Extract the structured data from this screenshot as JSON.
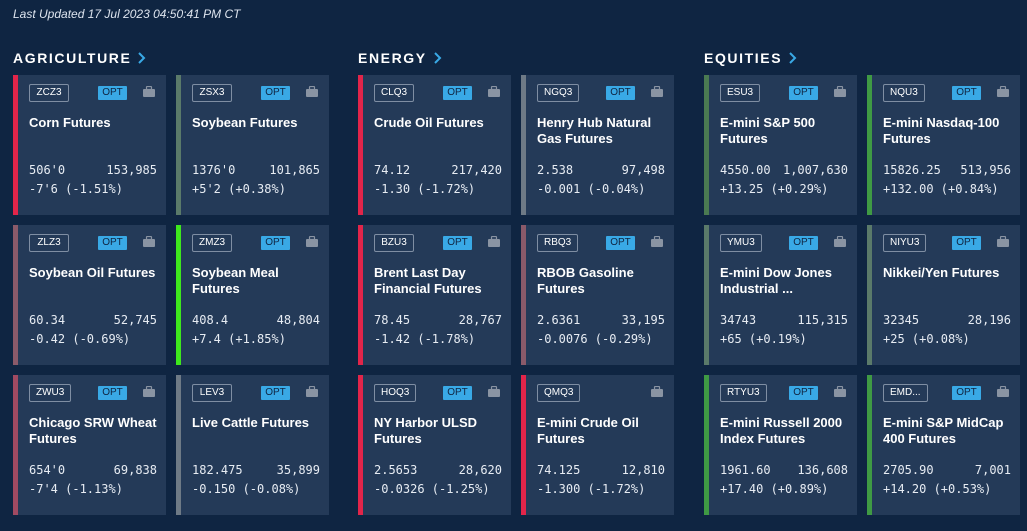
{
  "last_updated": "Last Updated 17 Jul 2023 04:50:41 PM CT",
  "colors": {
    "background": "#0f2542",
    "card": "#243a58",
    "opt_badge": "#39a9e6",
    "neg_strong": "#e2254a",
    "neg_weak": "#8a5a6a",
    "pos_strong": "#3ee81d",
    "pos_weak": "#3f8a44",
    "neutral": "#6e7a86"
  },
  "sections": [
    {
      "title": "AGRICULTURE",
      "cards": [
        {
          "symbol": "ZCZ3",
          "opt": "OPT",
          "name": "Corn Futures",
          "price": "506'0",
          "volume": "153,985",
          "change": "-7'6 (-1.51%)",
          "bar_color": "#e2254a"
        },
        {
          "symbol": "ZSX3",
          "opt": "OPT",
          "name": "Soybean Futures",
          "price": "1376'0",
          "volume": "101,865",
          "change": "+5'2 (+0.38%)",
          "bar_color": "#5a7a6a"
        },
        {
          "symbol": "ZLZ3",
          "opt": "OPT",
          "name": "Soybean Oil Futures",
          "price": "60.34",
          "volume": "52,745",
          "change": "-0.42 (-0.69%)",
          "bar_color": "#8a5a6a"
        },
        {
          "symbol": "ZMZ3",
          "opt": "OPT",
          "name": "Soybean Meal Futures",
          "price": "408.4",
          "volume": "48,804",
          "change": "+7.4 (+1.85%)",
          "bar_color": "#3ee81d"
        },
        {
          "symbol": "ZWU3",
          "opt": "OPT",
          "name": "Chicago SRW Wheat Futures",
          "price": "654'0",
          "volume": "69,838",
          "change": "-7'4 (-1.13%)",
          "bar_color": "#a04a62"
        },
        {
          "symbol": "LEV3",
          "opt": "OPT",
          "name": "Live Cattle Futures",
          "price": "182.475",
          "volume": "35,899",
          "change": "-0.150 (-0.08%)",
          "bar_color": "#6e7a86"
        }
      ]
    },
    {
      "title": "ENERGY",
      "cards": [
        {
          "symbol": "CLQ3",
          "opt": "OPT",
          "name": "Crude Oil Futures",
          "price": "74.12",
          "volume": "217,420",
          "change": "-1.30 (-1.72%)",
          "bar_color": "#e2254a"
        },
        {
          "symbol": "NGQ3",
          "opt": "OPT",
          "name": "Henry Hub Natural Gas Futures",
          "price": "2.538",
          "volume": "97,498",
          "change": "-0.001 (-0.04%)",
          "bar_color": "#6e7a86"
        },
        {
          "symbol": "BZU3",
          "opt": "OPT",
          "name": "Brent Last Day Financial Futures",
          "price": "78.45",
          "volume": "28,767",
          "change": "-1.42 (-1.78%)",
          "bar_color": "#e2254a"
        },
        {
          "symbol": "RBQ3",
          "opt": "OPT",
          "name": "RBOB Gasoline Futures",
          "price": "2.6361",
          "volume": "33,195",
          "change": "-0.0076 (-0.29%)",
          "bar_color": "#8a5a6a"
        },
        {
          "symbol": "HOQ3",
          "opt": "OPT",
          "name": "NY Harbor ULSD Futures",
          "price": "2.5653",
          "volume": "28,620",
          "change": "-0.0326 (-1.25%)",
          "bar_color": "#e2254a"
        },
        {
          "symbol": "QMQ3",
          "opt": "",
          "name": "E-mini Crude Oil Futures",
          "price": "74.125",
          "volume": "12,810",
          "change": "-1.300 (-1.72%)",
          "bar_color": "#e2254a"
        }
      ]
    },
    {
      "title": "EQUITIES",
      "cards": [
        {
          "symbol": "ESU3",
          "opt": "OPT",
          "name": "E-mini S&P 500 Futures",
          "price": "4550.00",
          "volume": "1,007,630",
          "change": "+13.25 (+0.29%)",
          "bar_color": "#4a7a52"
        },
        {
          "symbol": "NQU3",
          "opt": "OPT",
          "name": "E-mini Nasdaq-100 Futures",
          "price": "15826.25",
          "volume": "513,956",
          "change": "+132.00 (+0.84%)",
          "bar_color": "#3f9a44"
        },
        {
          "symbol": "YMU3",
          "opt": "OPT",
          "name": "E-mini Dow Jones Industrial ...",
          "price": "34743",
          "volume": "115,315",
          "change": "+65 (+0.19%)",
          "bar_color": "#5a7a6a"
        },
        {
          "symbol": "NIYU3",
          "opt": "OPT",
          "name": "Nikkei/Yen Futures",
          "price": "32345",
          "volume": "28,196",
          "change": "+25 (+0.08%)",
          "bar_color": "#5a7a6a"
        },
        {
          "symbol": "RTYU3",
          "opt": "OPT",
          "name": "E-mini  Russell 2000 Index Futures",
          "price": "1961.60",
          "volume": "136,608",
          "change": "+17.40 (+0.89%)",
          "bar_color": "#3f9a44"
        },
        {
          "symbol": "EMD...",
          "opt": "OPT",
          "name": "E-mini S&P MidCap 400 Futures",
          "price": "2705.90",
          "volume": "7,001",
          "change": "+14.20 (+0.53%)",
          "bar_color": "#3f9a44"
        }
      ]
    }
  ]
}
